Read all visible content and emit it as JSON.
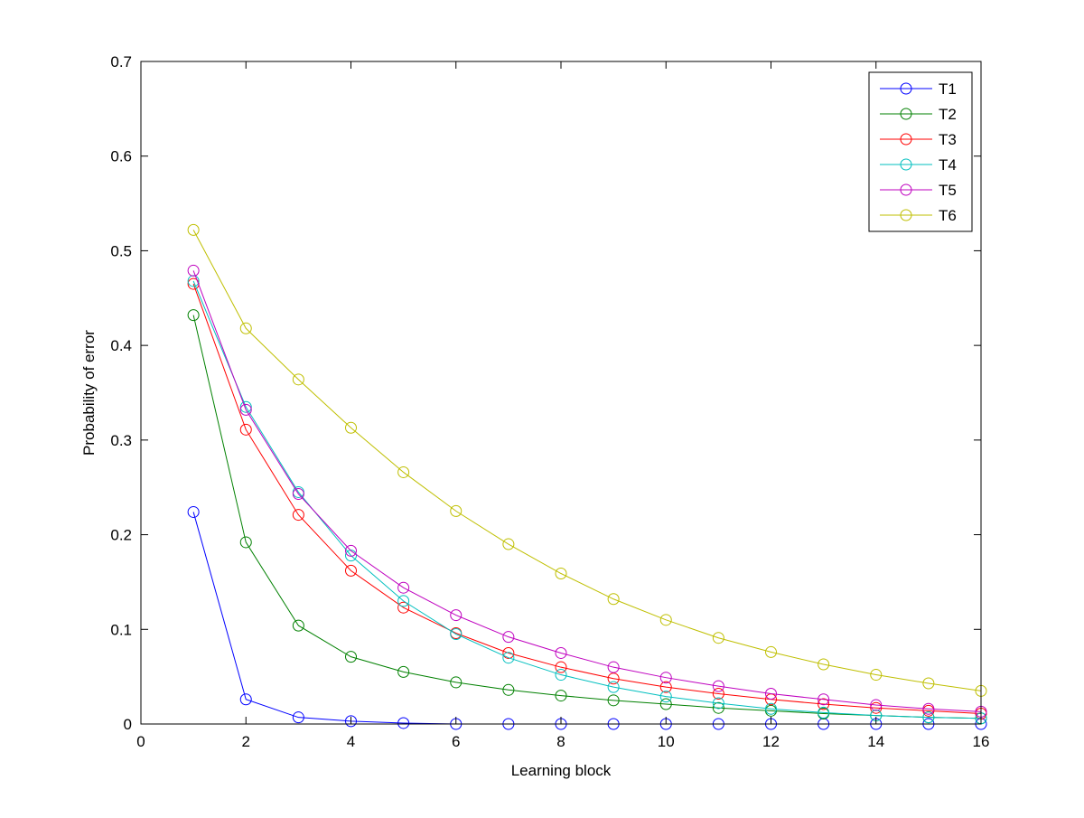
{
  "chart_data": {
    "type": "line",
    "title": "",
    "xlabel": "Learning block",
    "ylabel": "Probability of error",
    "xlim": [
      0,
      16
    ],
    "ylim": [
      0,
      0.7
    ],
    "xticks": [
      0,
      2,
      4,
      6,
      8,
      10,
      12,
      14,
      16
    ],
    "yticks": [
      0,
      0.1,
      0.2,
      0.3,
      0.4,
      0.5,
      0.6,
      0.7
    ],
    "xtick_labels": [
      "0",
      "2",
      "4",
      "6",
      "8",
      "10",
      "12",
      "14",
      "16"
    ],
    "ytick_labels": [
      "0",
      "0.1",
      "0.2",
      "0.3",
      "0.4",
      "0.5",
      "0.6",
      "0.7"
    ],
    "grid": false,
    "legend_position": "top-right",
    "marker": "circle",
    "x": [
      1,
      2,
      3,
      4,
      5,
      6,
      7,
      8,
      9,
      10,
      11,
      12,
      13,
      14,
      15,
      16
    ],
    "series": [
      {
        "name": "T1",
        "color": "#0000ff",
        "values": [
          0.224,
          0.026,
          0.007,
          0.003,
          0.001,
          0.0,
          0.0,
          0.0,
          0.0,
          0.0,
          0.0,
          0.0,
          0.0,
          0.0,
          0.0,
          0.0
        ]
      },
      {
        "name": "T2",
        "color": "#008000",
        "values": [
          0.432,
          0.192,
          0.104,
          0.071,
          0.055,
          0.044,
          0.036,
          0.03,
          0.025,
          0.021,
          0.017,
          0.014,
          0.011,
          0.009,
          0.007,
          0.006
        ]
      },
      {
        "name": "T3",
        "color": "#ff0000",
        "values": [
          0.465,
          0.311,
          0.221,
          0.162,
          0.123,
          0.096,
          0.075,
          0.06,
          0.048,
          0.039,
          0.032,
          0.026,
          0.021,
          0.017,
          0.014,
          0.011
        ]
      },
      {
        "name": "T4",
        "color": "#00bfbf",
        "values": [
          0.468,
          0.335,
          0.245,
          0.178,
          0.13,
          0.095,
          0.07,
          0.052,
          0.039,
          0.029,
          0.022,
          0.016,
          0.012,
          0.009,
          0.007,
          0.006
        ]
      },
      {
        "name": "T5",
        "color": "#bf00bf",
        "values": [
          0.479,
          0.332,
          0.243,
          0.183,
          0.144,
          0.115,
          0.092,
          0.075,
          0.06,
          0.049,
          0.04,
          0.032,
          0.026,
          0.02,
          0.016,
          0.013
        ]
      },
      {
        "name": "T6",
        "color": "#bfbf00",
        "values": [
          0.522,
          0.418,
          0.364,
          0.313,
          0.266,
          0.225,
          0.19,
          0.159,
          0.132,
          0.11,
          0.091,
          0.076,
          0.063,
          0.052,
          0.043,
          0.035
        ]
      }
    ]
  }
}
